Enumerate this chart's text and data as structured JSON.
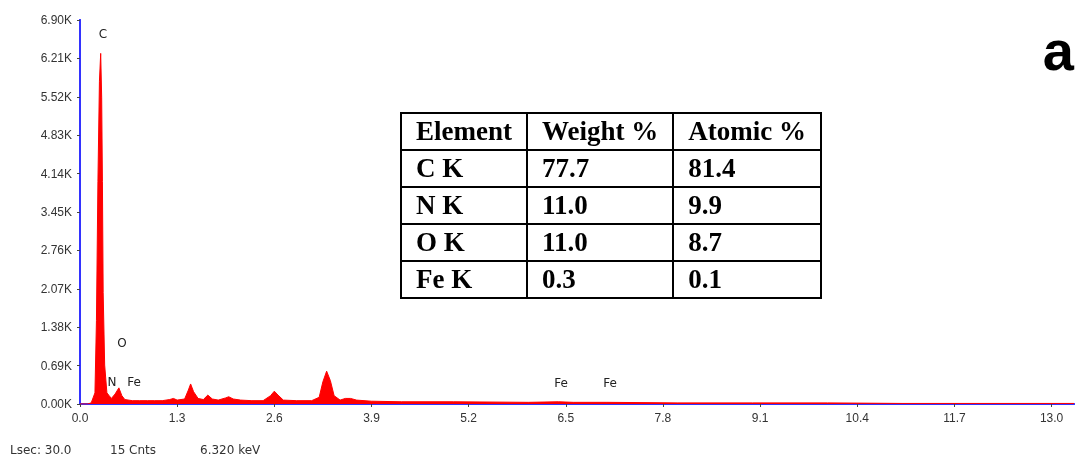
{
  "chart_data": [
    {
      "type": "area",
      "color": "#ff0000",
      "x": [
        0,
        0.1,
        0.15,
        0.2,
        0.22,
        0.24,
        0.26,
        0.277,
        0.29,
        0.3,
        0.31,
        0.33,
        0.36,
        0.39,
        0.42,
        0.47,
        0.52,
        0.56,
        0.6,
        0.7,
        0.8,
        0.9,
        1.0,
        1.1,
        1.2,
        1.25,
        1.3,
        1.4,
        1.45,
        1.48,
        1.52,
        1.58,
        1.65,
        1.71,
        1.77,
        1.85,
        1.95,
        1.99,
        2.05,
        2.15,
        2.3,
        2.45,
        2.55,
        2.6,
        2.65,
        2.72,
        2.9,
        3.1,
        3.2,
        3.25,
        3.3,
        3.35,
        3.4,
        3.48,
        3.55,
        3.62,
        3.7,
        3.9,
        4.3,
        5,
        6,
        6.4,
        6.6,
        7.05,
        8,
        9,
        10,
        11,
        12,
        13.3
      ],
      "values": [
        0,
        0,
        20,
        200,
        1500,
        4000,
        5800,
        6300,
        5500,
        4000,
        2000,
        700,
        200,
        150,
        100,
        180,
        290,
        150,
        80,
        60,
        60,
        60,
        60,
        60,
        80,
        100,
        70,
        90,
        250,
        360,
        220,
        100,
        80,
        160,
        90,
        70,
        110,
        130,
        90,
        70,
        60,
        60,
        150,
        230,
        160,
        70,
        60,
        60,
        120,
        400,
        590,
        420,
        150,
        70,
        100,
        100,
        70,
        50,
        40,
        40,
        30,
        40,
        30,
        30,
        20,
        20,
        20,
        10,
        10,
        10
      ],
      "xlim": [
        0,
        13.3
      ],
      "xticks": [
        {
          "value": 0,
          "label": "0.0"
        },
        1.3,
        2.6,
        3.9,
        5.2,
        6.5,
        7.8,
        9.1,
        10.4,
        11.7,
        {
          "value": 13,
          "label": "13.0"
        }
      ],
      "ylim": [
        0,
        6900
      ],
      "yticks": [
        {
          "value": 0,
          "label": "0.00K"
        },
        {
          "value": 690,
          "label": "0.69K"
        },
        {
          "value": 1380,
          "label": "1.38K"
        },
        {
          "value": 2070,
          "label": "2.07K"
        },
        {
          "value": 2760,
          "label": "2.76K"
        },
        {
          "value": 3450,
          "label": "3.45K"
        },
        {
          "value": 4140,
          "label": "4.14K"
        },
        {
          "value": 4830,
          "label": "4.83K"
        },
        {
          "value": 5520,
          "label": "5.52K"
        },
        {
          "value": 6210,
          "label": "6.21K"
        },
        {
          "value": 6900,
          "label": "6.90K"
        }
      ],
      "grid": false,
      "annotations": [
        "C",
        "N",
        "Fe",
        "O",
        "Fe",
        "Fe",
        "a",
        "Lsec: 30.0",
        "15 Cnts",
        "6.320 keV"
      ]
    },
    {
      "type": "other",
      "ylabel": "Element",
      "categories": [
        "Weight %",
        "Atomic %"
      ],
      "y_categories": [
        "C K",
        "N K",
        "O K",
        "Fe K"
      ],
      "cell_labels": [
        [
          "77.7",
          "81.4"
        ],
        [
          "11.0",
          "9.9"
        ],
        [
          "11.0",
          "8.7"
        ],
        [
          "0.3",
          "0.1"
        ]
      ]
    }
  ]
}
